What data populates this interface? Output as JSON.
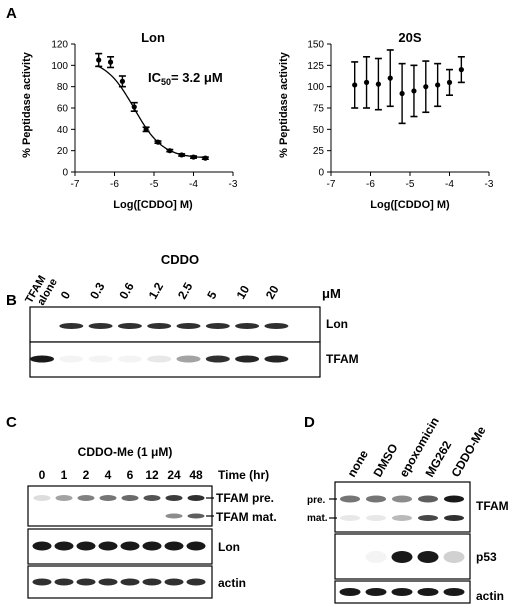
{
  "panels": {
    "A": "A",
    "B": "B",
    "C": "C",
    "D": "D"
  },
  "chart_data": [
    {
      "type": "scatter",
      "title": "Lon",
      "xlabel": "Log([CDDO] M)",
      "ylabel": "% Peptidase activity",
      "annotation": "IC50= 3.2 μM",
      "annotation_parts": {
        "prefix": "IC",
        "sub": "50",
        "suffix": "= 3.2 μM"
      },
      "xlim": [
        -7,
        -3
      ],
      "ylim": [
        0,
        120
      ],
      "xticks": [
        -7,
        -6,
        -5,
        -4,
        -3
      ],
      "yticks": [
        0,
        20,
        40,
        60,
        80,
        100,
        120
      ],
      "x": [
        -6.4,
        -6.1,
        -5.8,
        -5.5,
        -5.2,
        -4.9,
        -4.6,
        -4.3,
        -4.0,
        -3.7
      ],
      "y": [
        105,
        103,
        85,
        61,
        40,
        28,
        20,
        16,
        14,
        13
      ],
      "err": [
        6,
        5,
        5,
        4,
        2,
        1,
        1,
        1,
        1,
        1
      ],
      "fit": "sigmoidal dose-response"
    },
    {
      "type": "scatter",
      "title": "20S",
      "xlabel": "Log([CDDO] M)",
      "ylabel": "% Peptidase activity",
      "xlim": [
        -7,
        -3
      ],
      "ylim": [
        0,
        150
      ],
      "xticks": [
        -7,
        -6,
        -5,
        -4,
        -3
      ],
      "yticks": [
        0,
        25,
        50,
        75,
        100,
        125,
        150
      ],
      "x": [
        -6.4,
        -6.1,
        -5.8,
        -5.5,
        -5.2,
        -4.9,
        -4.6,
        -4.3,
        -4.0,
        -3.7
      ],
      "y": [
        102,
        105,
        103,
        110,
        92,
        95,
        100,
        102,
        105,
        120
      ],
      "err": [
        27,
        30,
        30,
        33,
        35,
        30,
        30,
        25,
        15,
        15
      ]
    }
  ],
  "panel_b": {
    "title": "CDDO",
    "unit": "μM",
    "lanes": [
      "TFAM alone",
      "0",
      "0.3",
      "0.6",
      "1.2",
      "2.5",
      "5",
      "10",
      "20"
    ],
    "lane0_lines": [
      "TFAM",
      "alone"
    ],
    "blots": [
      {
        "label": "Lon",
        "intensities": [
          0,
          0.9,
          0.9,
          0.9,
          0.9,
          0.9,
          0.9,
          0.9,
          0.9
        ]
      },
      {
        "label": "TFAM",
        "intensities": [
          1.0,
          0.05,
          0.05,
          0.05,
          0.1,
          0.4,
          0.9,
          0.95,
          0.95
        ]
      }
    ]
  },
  "panel_c": {
    "title": "CDDO-Me (1 μM)",
    "axis_label": "Time (hr)",
    "lanes": [
      "0",
      "1",
      "2",
      "4",
      "6",
      "12",
      "24",
      "48"
    ],
    "blots": [
      {
        "labels": [
          "TFAM pre.",
          "TFAM mat."
        ],
        "intensities": [
          0.15,
          0.4,
          0.55,
          0.6,
          0.65,
          0.75,
          0.85,
          0.9
        ],
        "mature": [
          0,
          0,
          0,
          0,
          0,
          0,
          0.5,
          0.7
        ]
      },
      {
        "labels": [
          "Lon"
        ],
        "intensities": [
          1,
          1,
          1,
          1,
          1,
          1,
          1,
          1
        ]
      },
      {
        "labels": [
          "actin"
        ],
        "intensities": [
          0.9,
          0.9,
          0.9,
          0.9,
          0.9,
          0.9,
          0.9,
          0.9
        ]
      }
    ]
  },
  "panel_d": {
    "lanes": [
      "none",
      "DMSO",
      "epoxomicin",
      "MG262",
      "CDDO-Me"
    ],
    "band_markers": [
      "pre.",
      "mat."
    ],
    "blots": [
      {
        "label": "TFAM",
        "pre": [
          0.6,
          0.6,
          0.5,
          0.7,
          1.0
        ],
        "mat": [
          0.1,
          0.1,
          0.3,
          0.8,
          0.9
        ]
      },
      {
        "label": "p53",
        "intensities": [
          0,
          0.05,
          1.0,
          1.0,
          0.2
        ]
      },
      {
        "label": "actin",
        "intensities": [
          1,
          1,
          1,
          1,
          1
        ]
      }
    ]
  }
}
